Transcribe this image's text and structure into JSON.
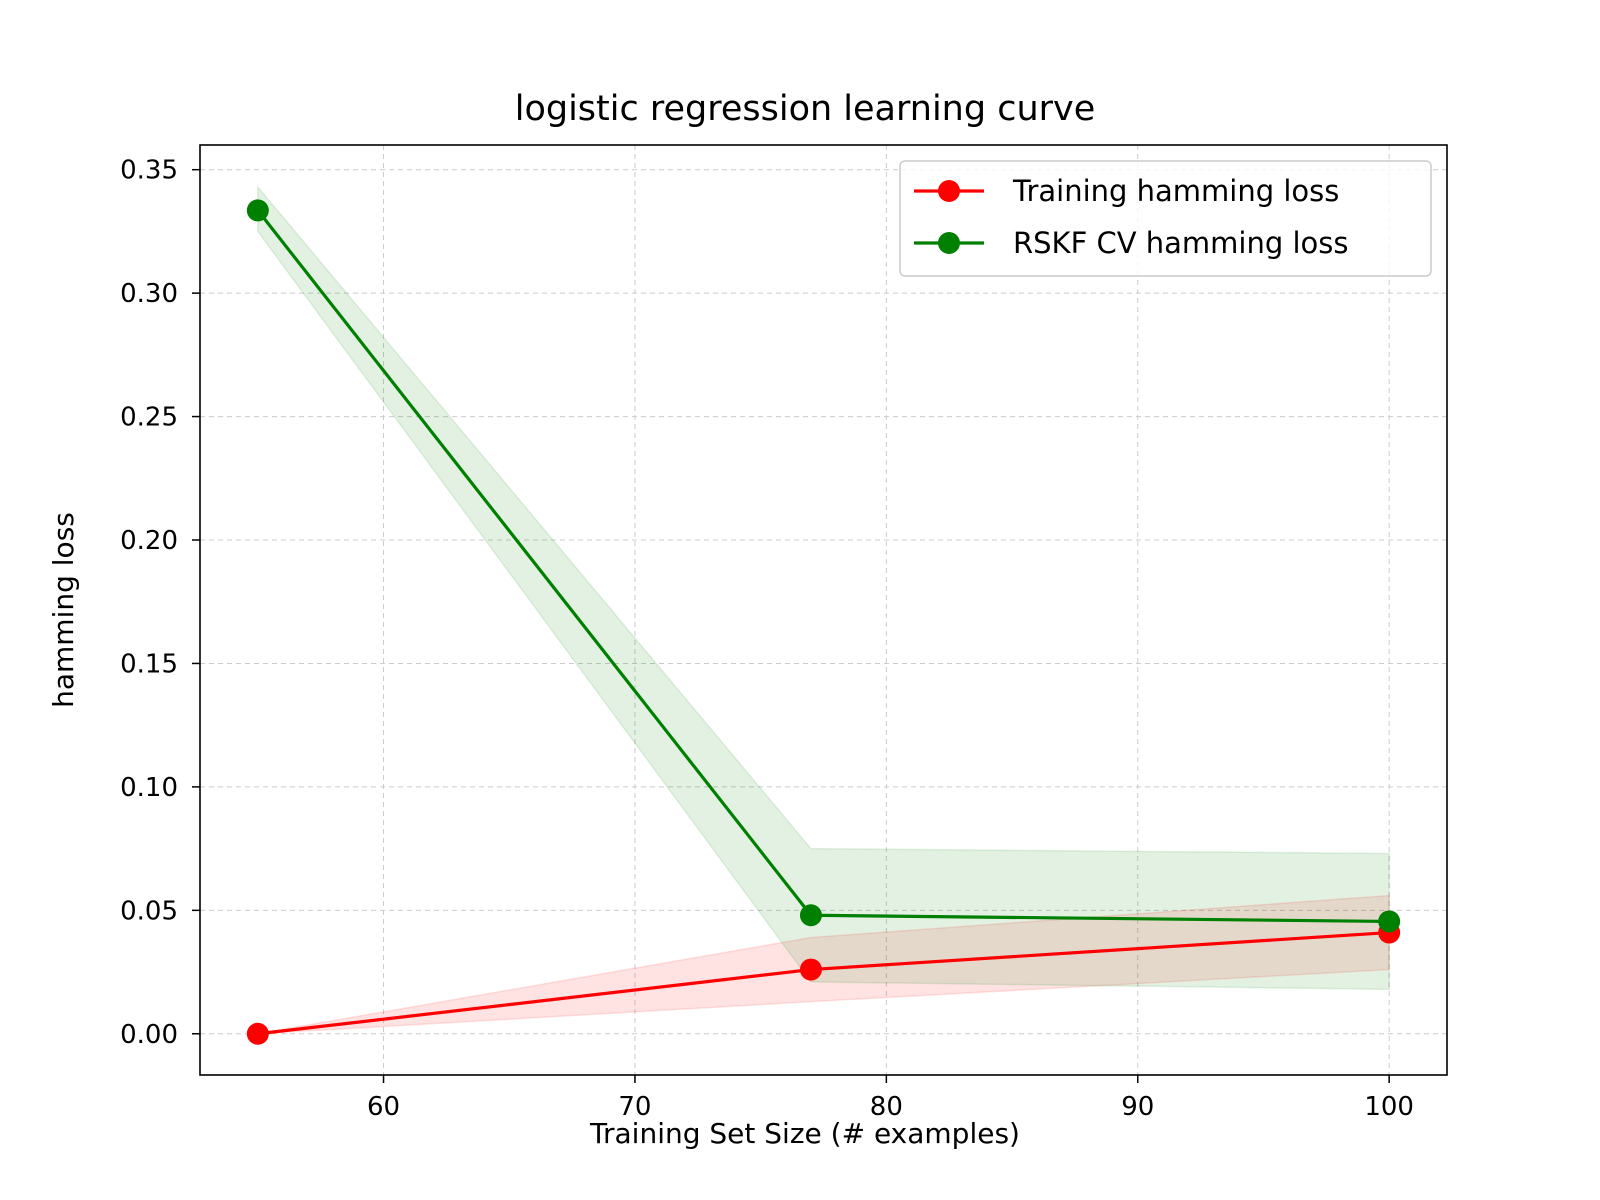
{
  "chart_data": {
    "type": "line",
    "title": "logistic regression learning curve",
    "xlabel": "Training Set Size (# examples)",
    "ylabel": "hamming loss",
    "xlim": [
      52.7,
      102.3
    ],
    "ylim": [
      -0.0167,
      0.36
    ],
    "xticks": [
      60,
      70,
      80,
      90,
      100
    ],
    "xtick_labels": [
      "60",
      "70",
      "80",
      "90",
      "100"
    ],
    "yticks": [
      0.0,
      0.05,
      0.1,
      0.15,
      0.2,
      0.25,
      0.3,
      0.35
    ],
    "ytick_labels": [
      "0.00",
      "0.05",
      "0.10",
      "0.15",
      "0.20",
      "0.25",
      "0.30",
      "0.35"
    ],
    "grid": true,
    "legend_position": "top-right",
    "x": [
      55,
      77,
      100
    ],
    "series": [
      {
        "name": "Training hamming loss",
        "color": "#ff0000",
        "values": [
          0.0,
          0.026,
          0.041
        ],
        "band_lower": [
          0.0,
          0.013,
          0.026
        ],
        "band_upper": [
          0.0,
          0.039,
          0.056
        ]
      },
      {
        "name": "RSKF CV hamming loss",
        "color": "#008000",
        "values": [
          0.3335,
          0.048,
          0.0455
        ],
        "band_lower": [
          0.325,
          0.021,
          0.018
        ],
        "band_upper": [
          0.343,
          0.075,
          0.073
        ]
      }
    ]
  }
}
